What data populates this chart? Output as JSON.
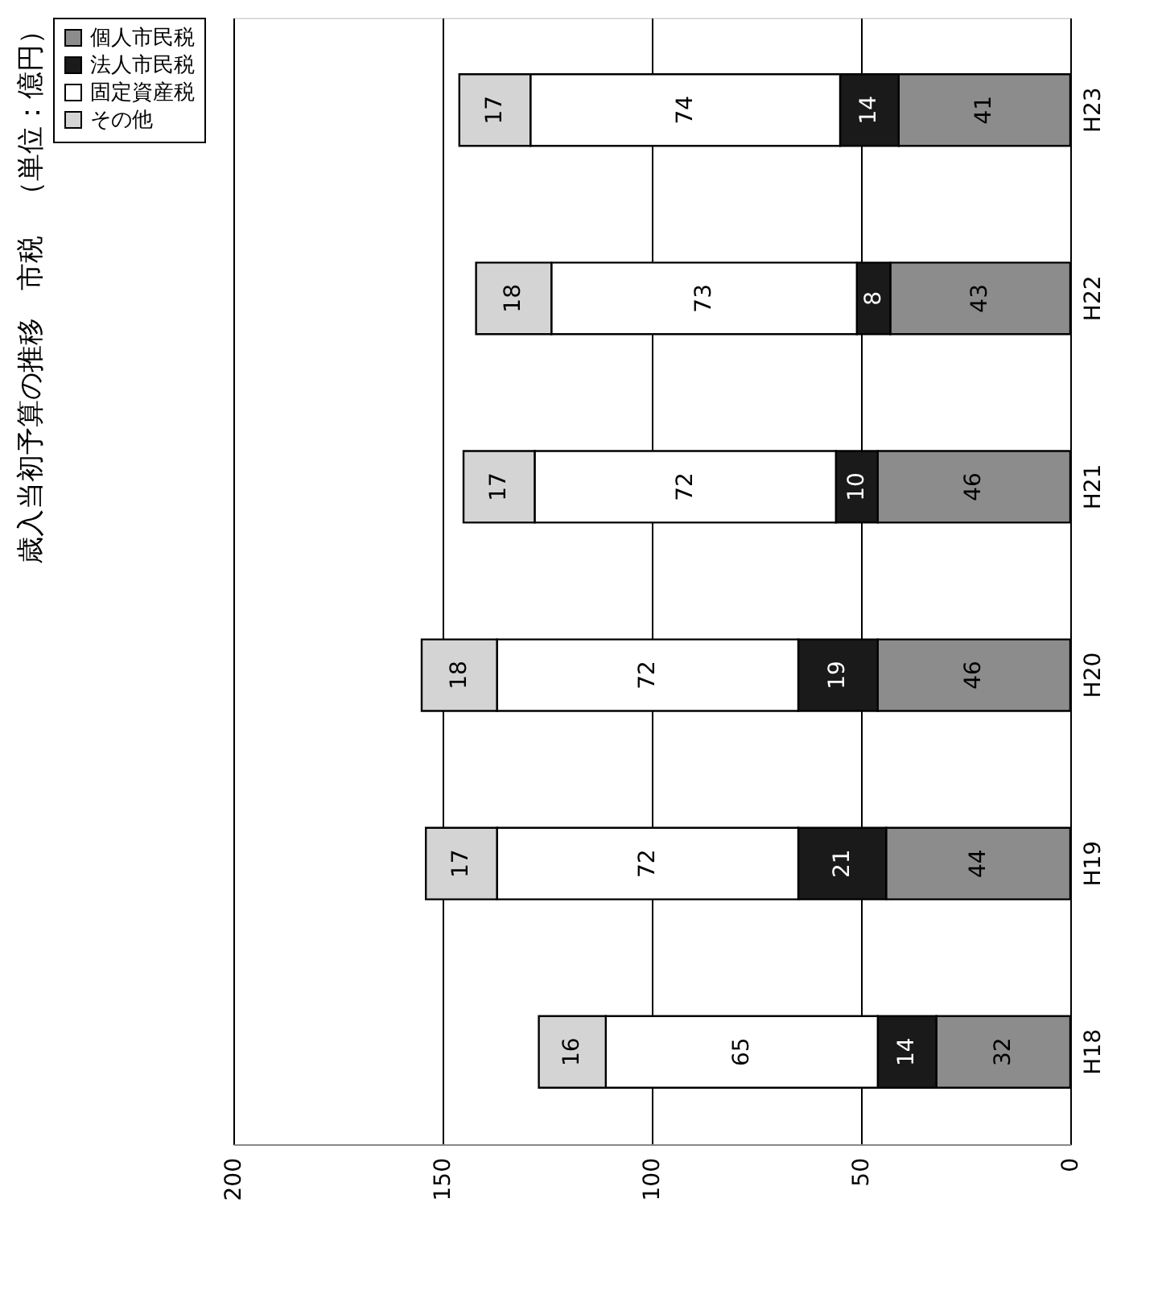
{
  "chart_data": {
    "type": "bar",
    "title": "歳入当初予算の推移　市税　（単位：億円）",
    "orientation": "horizontal",
    "stacked": true,
    "categories": [
      "H23",
      "H22",
      "H21",
      "H20",
      "H19",
      "H18"
    ],
    "series": [
      {
        "name": "個人市民税",
        "color": "#8c8c8c",
        "values": [
          41,
          43,
          46,
          46,
          44,
          32
        ]
      },
      {
        "name": "法人市民税",
        "color": "#1a1a1a",
        "values": [
          14,
          8,
          10,
          19,
          21,
          14
        ]
      },
      {
        "name": "固定資産税",
        "color": "#ffffff",
        "values": [
          74,
          73,
          72,
          72,
          72,
          65
        ]
      },
      {
        "name": "その他",
        "color": "#d4d4d4",
        "values": [
          17,
          18,
          17,
          18,
          17,
          16
        ]
      }
    ],
    "xlim": [
      200,
      0
    ],
    "xticks": [
      0,
      50,
      100,
      150,
      200
    ],
    "grid": "x",
    "legend": "left",
    "data_labels": true
  }
}
